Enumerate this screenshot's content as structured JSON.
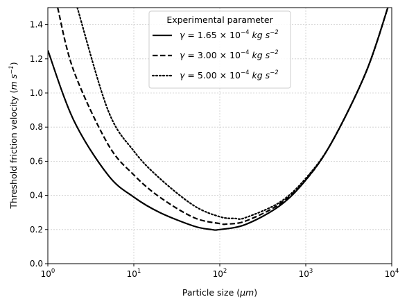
{
  "chart_data": {
    "type": "line",
    "x_scale": "log",
    "xlim": [
      1,
      10000
    ],
    "ylim": [
      0.0,
      1.5
    ],
    "grid": true,
    "legend_placement": "top-center",
    "xlabel": {
      "prefix": "Particle size (",
      "unit": "μm",
      "suffix": ")"
    },
    "ylabel": {
      "prefix": "Threshold friction velocity (",
      "unit_main": "m s",
      "unit_exp": "−1",
      "suffix": ")"
    },
    "x_ticks": [
      {
        "value": 1,
        "base": "10",
        "exp": "0"
      },
      {
        "value": 10,
        "base": "10",
        "exp": "1"
      },
      {
        "value": 100,
        "base": "10",
        "exp": "2"
      },
      {
        "value": 1000,
        "base": "10",
        "exp": "3"
      },
      {
        "value": 10000,
        "base": "10",
        "exp": "4"
      }
    ],
    "y_ticks": [
      {
        "value": 0.0,
        "label": "0.0"
      },
      {
        "value": 0.2,
        "label": "0.2"
      },
      {
        "value": 0.4,
        "label": "0.4"
      },
      {
        "value": 0.6,
        "label": "0.6"
      },
      {
        "value": 0.8,
        "label": "0.8"
      },
      {
        "value": 1.0,
        "label": "1.0"
      },
      {
        "value": 1.2,
        "label": "1.2"
      },
      {
        "value": 1.4,
        "label": "1.4"
      }
    ],
    "legend_title": "Experimental parameter",
    "series": [
      {
        "name": {
          "symbol": "γ",
          "eq": " = 1.65 × 10",
          "exp": "−4",
          "unit_a": " kg s",
          "unit_exp": "−2"
        },
        "style": "solid",
        "color": "#000000",
        "x": [
          1,
          2,
          5,
          10,
          20,
          50,
          80,
          100,
          200,
          500,
          1000,
          2000,
          5000,
          9000
        ],
        "y": [
          1.25,
          0.84,
          0.52,
          0.39,
          0.3,
          0.22,
          0.2,
          0.2,
          0.23,
          0.34,
          0.49,
          0.71,
          1.12,
          1.5
        ]
      },
      {
        "name": {
          "symbol": "γ",
          "eq": " = 3.00 × 10",
          "exp": "−4",
          "unit_a": " kg s",
          "unit_exp": "−2"
        },
        "style": "dashed",
        "color": "#000000",
        "x": [
          1.3,
          2,
          5,
          10,
          20,
          50,
          100,
          120,
          200,
          500,
          1000,
          2000,
          5000,
          9000
        ],
        "y": [
          1.5,
          1.13,
          0.7,
          0.52,
          0.39,
          0.27,
          0.235,
          0.232,
          0.25,
          0.35,
          0.49,
          0.71,
          1.12,
          1.5
        ]
      },
      {
        "name": {
          "symbol": "γ",
          "eq": " = 5.00 × 10",
          "exp": "−4",
          "unit_a": " kg s",
          "unit_exp": "−2"
        },
        "style": "dotted",
        "color": "#000000",
        "x": [
          2.2,
          5,
          10,
          20,
          50,
          100,
          150,
          200,
          500,
          1000,
          2000,
          5000,
          9000
        ],
        "y": [
          1.5,
          0.9,
          0.66,
          0.5,
          0.34,
          0.275,
          0.265,
          0.27,
          0.36,
          0.5,
          0.71,
          1.12,
          1.5
        ]
      }
    ]
  }
}
